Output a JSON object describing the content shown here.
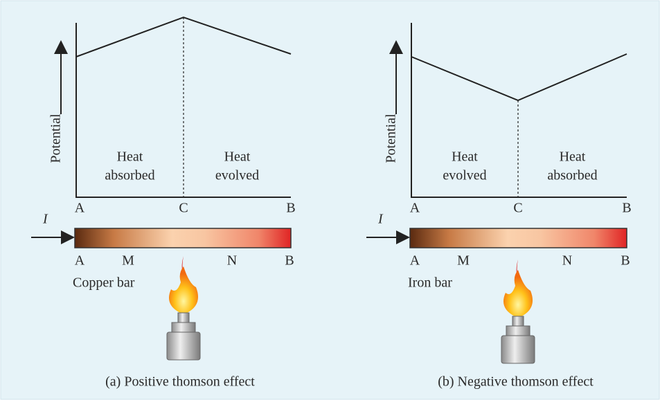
{
  "panels": [
    {
      "y_axis_label": "Potential",
      "regions": [
        {
          "lines": [
            "Heat",
            "absorbed"
          ]
        },
        {
          "lines": [
            "Heat",
            "evolved"
          ]
        }
      ],
      "axis_points": [
        "A",
        "C",
        "B"
      ],
      "current_label": "I",
      "bar_points": [
        "A",
        "M",
        "N",
        "B"
      ],
      "bar_label": "Copper bar",
      "caption": "(a) Positive thomson effect"
    },
    {
      "y_axis_label": "Potential",
      "regions": [
        {
          "lines": [
            "Heat",
            "evolved"
          ]
        },
        {
          "lines": [
            "Heat",
            "absorbed"
          ]
        }
      ],
      "axis_points": [
        "A",
        "C",
        "B"
      ],
      "current_label": "I",
      "bar_points": [
        "A",
        "M",
        "N",
        "B"
      ],
      "bar_label": "Iron bar",
      "caption": "(b) Negative thomson effect"
    }
  ]
}
